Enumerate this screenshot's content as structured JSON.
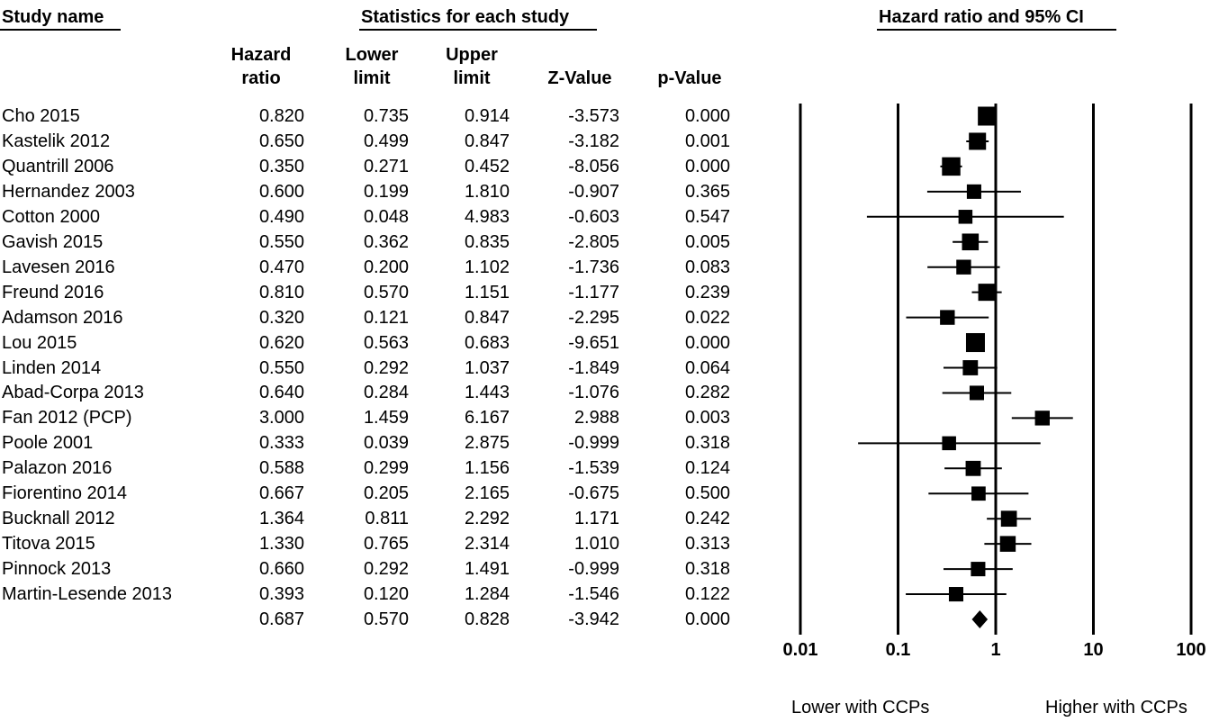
{
  "headers": {
    "study_name": "Study name",
    "stats": "Statistics for each study",
    "plot": "Hazard ratio and 95% CI"
  },
  "columns": [
    {
      "label": "Hazard\nratio"
    },
    {
      "label": "Lower\nlimit"
    },
    {
      "label": "Upper\nlimit"
    },
    {
      "label": "Z-Value"
    },
    {
      "label": "p-Value"
    }
  ],
  "footer": {
    "left": "Lower with CCPs",
    "right": "Higher with CCPs"
  },
  "chart_data": {
    "type": "forest",
    "x_scale": "log",
    "xlim": [
      0.01,
      100
    ],
    "xticks": [
      "0.01",
      "0.1",
      "1",
      "10",
      "100"
    ],
    "reference_line": 1,
    "studies": [
      {
        "name": "Cho 2015",
        "hr": "0.820",
        "lower": "0.735",
        "upper": "0.914",
        "z": "-3.573",
        "p": "0.000",
        "weight": 1.0
      },
      {
        "name": "Kastelik 2012",
        "hr": "0.650",
        "lower": "0.499",
        "upper": "0.847",
        "z": "-3.182",
        "p": "0.001",
        "weight": 0.82
      },
      {
        "name": "Quantrill 2006",
        "hr": "0.350",
        "lower": "0.271",
        "upper": "0.452",
        "z": "-8.056",
        "p": "0.000",
        "weight": 0.95
      },
      {
        "name": "Hernandez 2003",
        "hr": "0.600",
        "lower": "0.199",
        "upper": "1.810",
        "z": "-0.907",
        "p": "0.365",
        "weight": 0.55
      },
      {
        "name": "Cotton 2000",
        "hr": "0.490",
        "lower": "0.048",
        "upper": "4.983",
        "z": "-0.603",
        "p": "0.547",
        "weight": 0.5
      },
      {
        "name": "Gavish 2015",
        "hr": "0.550",
        "lower": "0.362",
        "upper": "0.835",
        "z": "-2.805",
        "p": "0.005",
        "weight": 0.78
      },
      {
        "name": "Lavesen 2016",
        "hr": "0.470",
        "lower": "0.200",
        "upper": "1.102",
        "z": "-1.736",
        "p": "0.083",
        "weight": 0.58
      },
      {
        "name": "Freund 2016",
        "hr": "0.810",
        "lower": "0.570",
        "upper": "1.151",
        "z": "-1.177",
        "p": "0.239",
        "weight": 0.82
      },
      {
        "name": "Adamson 2016",
        "hr": "0.320",
        "lower": "0.121",
        "upper": "0.847",
        "z": "-2.295",
        "p": "0.022",
        "weight": 0.58
      },
      {
        "name": "Lou 2015",
        "hr": "0.620",
        "lower": "0.563",
        "upper": "0.683",
        "z": "-9.651",
        "p": "0.000",
        "weight": 1.0
      },
      {
        "name": "Linden 2014",
        "hr": "0.550",
        "lower": "0.292",
        "upper": "1.037",
        "z": "-1.849",
        "p": "0.064",
        "weight": 0.62
      },
      {
        "name": "Abad-Corpa 2013",
        "hr": "0.640",
        "lower": "0.284",
        "upper": "1.443",
        "z": "-1.076",
        "p": "0.282",
        "weight": 0.55
      },
      {
        "name": "Fan 2012 (PCP)",
        "hr": "3.000",
        "lower": "1.459",
        "upper": "6.167",
        "z": "2.988",
        "p": "0.003",
        "weight": 0.58
      },
      {
        "name": "Poole 2001",
        "hr": "0.333",
        "lower": "0.039",
        "upper": "2.875",
        "z": "-0.999",
        "p": "0.318",
        "weight": 0.5
      },
      {
        "name": "Palazon 2016",
        "hr": "0.588",
        "lower": "0.299",
        "upper": "1.156",
        "z": "-1.539",
        "p": "0.124",
        "weight": 0.62
      },
      {
        "name": "Fiorentino 2014",
        "hr": "0.667",
        "lower": "0.205",
        "upper": "2.165",
        "z": "-0.675",
        "p": "0.500",
        "weight": 0.52
      },
      {
        "name": "Bucknall 2012",
        "hr": "1.364",
        "lower": "0.811",
        "upper": "2.292",
        "z": "1.171",
        "p": "0.242",
        "weight": 0.7
      },
      {
        "name": "Titova 2015",
        "hr": "1.330",
        "lower": "0.765",
        "upper": "2.314",
        "z": "1.010",
        "p": "0.313",
        "weight": 0.68
      },
      {
        "name": "Pinnock 2013",
        "hr": "0.660",
        "lower": "0.292",
        "upper": "1.491",
        "z": "-0.999",
        "p": "0.318",
        "weight": 0.55
      },
      {
        "name": "Martin-Lesende 2013",
        "hr": "0.393",
        "lower": "0.120",
        "upper": "1.284",
        "z": "-1.546",
        "p": "0.122",
        "weight": 0.55
      }
    ],
    "summary": {
      "hr": "0.687",
      "lower": "0.570",
      "upper": "0.828",
      "z": "-3.942",
      "p": "0.000"
    }
  }
}
